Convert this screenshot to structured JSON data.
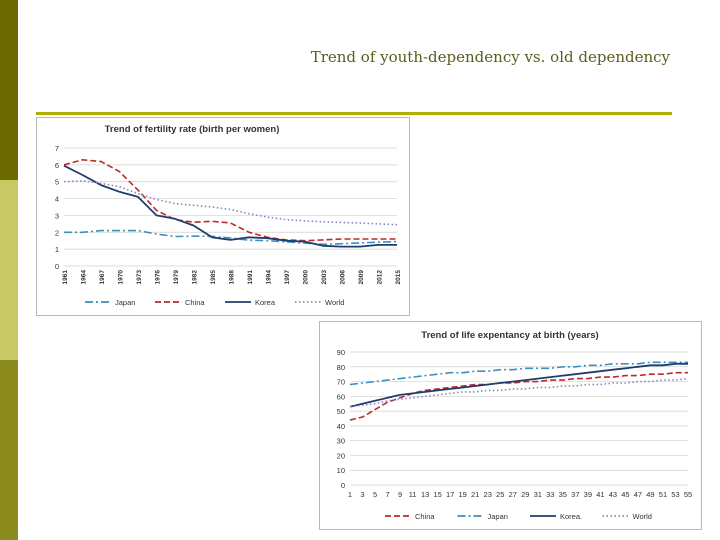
{
  "slide": {
    "title": "Trend of youth-dependency vs. old dependency"
  },
  "colors": {
    "bandDark": "#6b6b00",
    "bandLight": "#c8c864",
    "bandOlive": "#8c8c1e",
    "rule": "#b0b000",
    "title": "#5c5c1e"
  },
  "chart_data": [
    {
      "type": "line",
      "title": "Trend of fertility rate (birth per women)",
      "xlabel": "",
      "ylabel": "",
      "ylim": [
        0,
        7
      ],
      "yticks": [
        "0",
        "1",
        "2",
        "3",
        "4",
        "5",
        "6",
        "7"
      ],
      "categories": [
        "1961",
        "1964",
        "1967",
        "1970",
        "1973",
        "1976",
        "1979",
        "1982",
        "1985",
        "1988",
        "1991",
        "1994",
        "1997",
        "2000",
        "2003",
        "2006",
        "2009",
        "2012",
        "2015"
      ],
      "legend": "bottom",
      "grid": true,
      "series": [
        {
          "name": "Japan",
          "style": "dashdot",
          "color": "#3d8fc0",
          "values": [
            2.0,
            2.0,
            2.1,
            2.1,
            2.1,
            1.9,
            1.75,
            1.77,
            1.76,
            1.66,
            1.53,
            1.5,
            1.43,
            1.36,
            1.29,
            1.32,
            1.37,
            1.41,
            1.45
          ]
        },
        {
          "name": "China",
          "style": "dashed",
          "color": "#c0282a",
          "values": [
            6.0,
            6.3,
            6.2,
            5.6,
            4.5,
            3.3,
            2.75,
            2.6,
            2.65,
            2.55,
            2.0,
            1.7,
            1.55,
            1.5,
            1.55,
            1.6,
            1.6,
            1.6,
            1.6
          ]
        },
        {
          "name": "Korea",
          "style": "solid",
          "color": "#1f3d6b",
          "values": [
            5.95,
            5.4,
            4.8,
            4.4,
            4.1,
            3.0,
            2.8,
            2.4,
            1.7,
            1.55,
            1.7,
            1.65,
            1.5,
            1.45,
            1.2,
            1.15,
            1.15,
            1.25,
            1.25
          ]
        },
        {
          "name": "World",
          "style": "dotted",
          "color": "#8a84c0",
          "values": [
            5.0,
            5.05,
            4.9,
            4.7,
            4.3,
            3.95,
            3.7,
            3.6,
            3.5,
            3.35,
            3.1,
            2.9,
            2.75,
            2.68,
            2.62,
            2.58,
            2.55,
            2.5,
            2.45
          ]
        }
      ]
    },
    {
      "type": "line",
      "title": "Trend of life expentancy at birth (years)",
      "xlabel": "",
      "ylabel": "",
      "ylim": [
        0,
        90
      ],
      "yticks": [
        "0",
        "10",
        "20",
        "30",
        "40",
        "50",
        "60",
        "70",
        "80",
        "90"
      ],
      "categories": [
        "1",
        "3",
        "5",
        "7",
        "9",
        "11",
        "13",
        "15",
        "17",
        "19",
        "21",
        "23",
        "25",
        "27",
        "29",
        "31",
        "33",
        "35",
        "37",
        "39",
        "41",
        "43",
        "45",
        "47",
        "49",
        "51",
        "53",
        "55"
      ],
      "legend": "bottom",
      "grid": true,
      "series": [
        {
          "name": "China",
          "style": "dashed",
          "color": "#c0282a",
          "values": [
            44,
            46,
            51,
            56,
            59,
            62,
            64,
            65,
            66,
            67,
            68,
            68,
            69,
            69,
            70,
            70,
            71,
            71,
            72,
            72,
            73,
            73,
            74,
            74,
            75,
            75,
            76,
            76
          ]
        },
        {
          "name": "Japan",
          "style": "dashdot",
          "color": "#3d8fc0",
          "values": [
            68,
            69,
            70,
            71,
            72,
            73,
            74,
            75,
            76,
            76,
            77,
            77,
            78,
            78,
            79,
            79,
            79,
            80,
            80,
            81,
            81,
            82,
            82,
            82,
            83,
            83,
            83,
            83
          ]
        },
        {
          "name": "Korea.",
          "style": "solid",
          "color": "#1f3d6b",
          "values": [
            53,
            55,
            57,
            59,
            61,
            62,
            63,
            64,
            65,
            66,
            67,
            68,
            69,
            70,
            71,
            72,
            73,
            74,
            75,
            76,
            77,
            78,
            79,
            80,
            81,
            81,
            82,
            82
          ]
        },
        {
          "name": "World",
          "style": "dotted",
          "color": "#8a84c0",
          "values": [
            53,
            54,
            55,
            57,
            58,
            59,
            60,
            61,
            62,
            63,
            63,
            64,
            64,
            65,
            65,
            66,
            66,
            67,
            67,
            68,
            68,
            69,
            69,
            70,
            70,
            71,
            71,
            72
          ]
        }
      ]
    }
  ]
}
